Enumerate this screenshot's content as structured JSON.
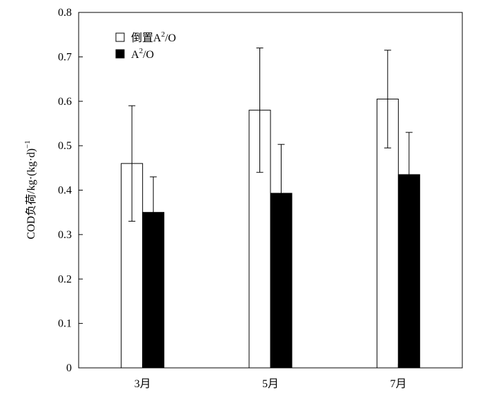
{
  "chart_data": {
    "type": "bar",
    "title": "",
    "xlabel": "",
    "ylabel": "COD负荷/kg·(kg·d)",
    "ylabel_superscript": "−1",
    "categories": [
      "3月",
      "5月",
      "7月"
    ],
    "ylim": [
      0,
      0.8
    ],
    "yticks": [
      0,
      0.1,
      0.2,
      0.3,
      0.4,
      0.5,
      0.6,
      0.7,
      0.8
    ],
    "ytick_labels": [
      "0",
      "0.1",
      "0.2",
      "0.3",
      "0.4",
      "0.5",
      "0.6",
      "0.7",
      "0.8"
    ],
    "grid": false,
    "legend_position": "top-left",
    "series": [
      {
        "name": "倒置A²/O",
        "legend_base": "倒置A",
        "legend_sup": "2",
        "legend_tail": "/O",
        "fill": "#ffffff",
        "values": [
          0.46,
          0.58,
          0.605
        ],
        "errors": [
          0.13,
          0.14,
          0.11
        ]
      },
      {
        "name": "A²/O",
        "legend_base": "A",
        "legend_sup": "2",
        "legend_tail": "/O",
        "fill": "#000000",
        "values": [
          0.35,
          0.393,
          0.435
        ],
        "errors": [
          0.08,
          0.11,
          0.095
        ]
      }
    ]
  }
}
